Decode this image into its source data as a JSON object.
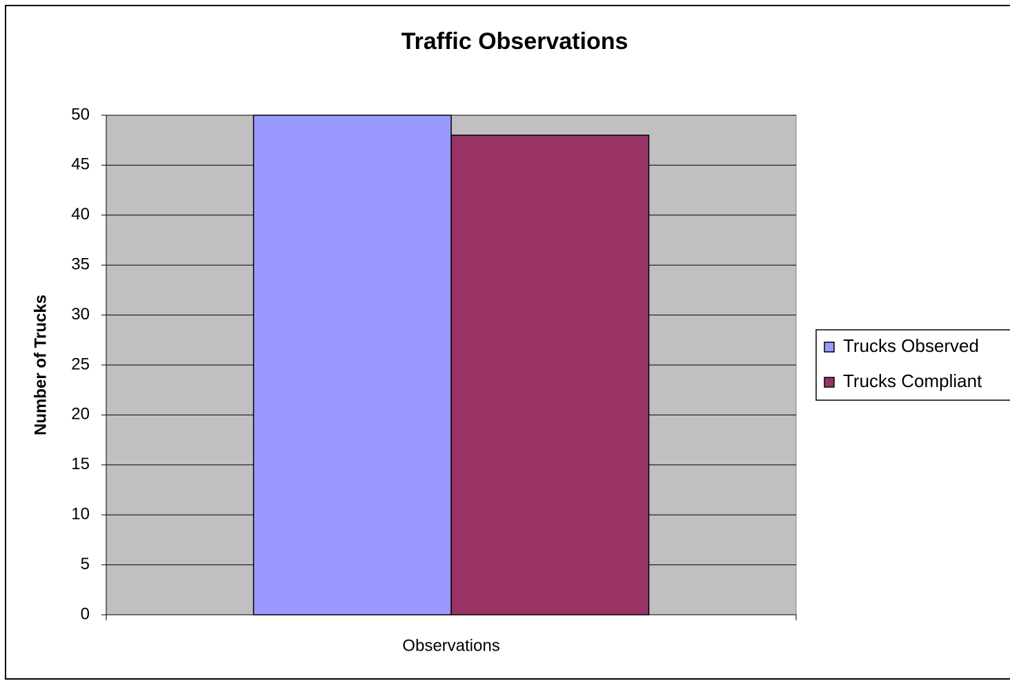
{
  "chart_data": {
    "type": "bar",
    "title": "Traffic Observations",
    "y_label": "Number of Trucks",
    "categories": [
      "Observations"
    ],
    "series": [
      {
        "name": "Trucks Observed",
        "color": "#9999ff",
        "values": [
          50
        ]
      },
      {
        "name": "Trucks Compliant",
        "color": "#993366",
        "values": [
          48
        ]
      }
    ],
    "ylim": [
      0,
      50
    ],
    "yticks": [
      0,
      5,
      10,
      15,
      20,
      25,
      30,
      35,
      40,
      45,
      50
    ],
    "grid": true,
    "plot_background": "#c0c0c0",
    "legend": "right"
  }
}
